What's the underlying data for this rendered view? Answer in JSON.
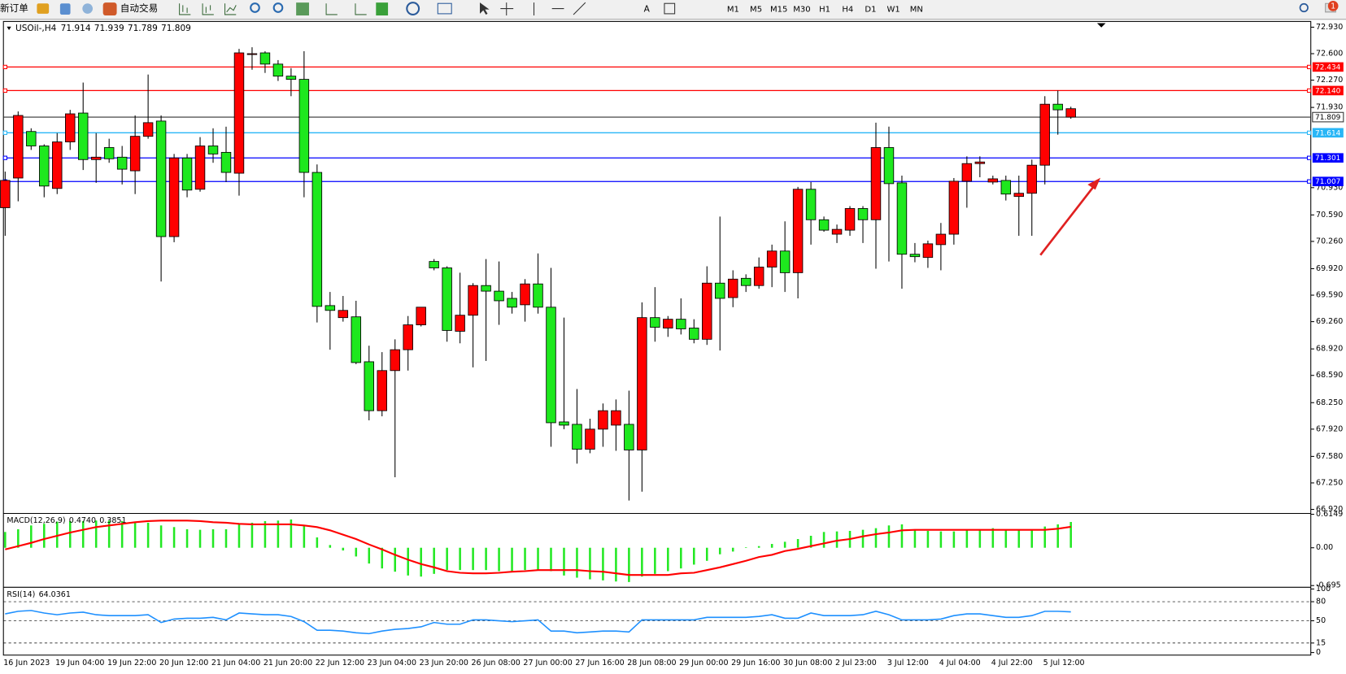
{
  "toolbar": {
    "new_order": "新订单",
    "auto_trading": "自动交易",
    "timeframes": [
      "M1",
      "M5",
      "M15",
      "M30",
      "H1",
      "H4",
      "D1",
      "W1",
      "MN"
    ],
    "notification_count": 1
  },
  "chart_data": [
    {
      "type": "candlestick",
      "symbol": "USOil-,H4",
      "categories": [
        "16 Jun 2023",
        null,
        null,
        null,
        "19 Jun 04:00",
        null,
        null,
        null,
        "19 Jun 22:00",
        null,
        null,
        null,
        "20 Jun 12:00",
        null,
        null,
        null,
        "21 Jun 04:00",
        null,
        null,
        null,
        "21 Jun 20:00",
        null,
        null,
        null,
        "22 Jun 12:00",
        null,
        null,
        null,
        "23 Jun 04:00",
        null,
        null,
        null,
        "23 Jun 20:00",
        null,
        null,
        null,
        "26 Jun 08:00",
        null,
        null,
        null,
        "27 Jun 00:00",
        null,
        null,
        null,
        "27 Jun 16:00",
        null,
        null,
        null,
        "28 Jun 08:00",
        null,
        null,
        null,
        "29 Jun 00:00",
        null,
        null,
        null,
        "29 Jun 16:00",
        null,
        null,
        null,
        "30 Jun 08:00",
        null,
        null,
        null,
        "2 Jul 23:00",
        null,
        null,
        null,
        "3 Jul 12:00",
        null,
        null,
        null,
        "4 Jul 04:00",
        null,
        null,
        null,
        "4 Jul 22:00",
        null,
        null,
        null,
        "5 Jul 12:00",
        null,
        null
      ],
      "open": [
        71.02,
        71.83,
        71.45,
        70.95,
        71.5,
        71.85,
        71.28,
        71.31,
        71.29,
        71.16,
        71.57,
        71.74,
        70.32,
        71.3,
        70.9,
        71.45,
        71.35,
        71.12,
        72.61,
        72.6,
        72.47,
        72.32,
        72.28,
        71.12,
        69.45,
        69.4,
        69.4,
        68.75,
        68.15,
        68.65,
        68.91,
        69.22,
        69.44,
        69.93,
        69.15,
        69.34,
        69.71,
        69.64,
        69.52,
        69.44,
        69.73,
        69.44,
        68.0,
        67.97,
        67.67,
        67.92,
        68.15,
        68.15,
        67.66,
        69.31,
        69.19,
        69.29,
        69.17,
        69.04,
        69.74,
        69.55,
        69.79,
        69.71,
        69.94,
        70.14,
        69.87,
        70.91,
        70.53,
        70.4,
        70.41,
        70.67,
        70.53,
        71.43,
        70.98,
        70.1,
        70.07,
        70.23,
        70.35,
        71.01,
        71.23,
        71.25,
        71.04,
        70.85,
        70.86,
        71.21,
        71.97,
        71.9,
        71.914
      ],
      "high": [
        71.13,
        71.88,
        71.67,
        71.47,
        71.61,
        71.9,
        72.24,
        71.61,
        71.54,
        71.45,
        71.83,
        72.34,
        71.83,
        71.35,
        71.35,
        71.56,
        71.67,
        71.69,
        72.66,
        72.68,
        72.63,
        72.52,
        72.42,
        72.63,
        71.22,
        69.63,
        69.58,
        69.52,
        68.96,
        68.88,
        69.04,
        69.33,
        69.44,
        70.04,
        69.95,
        69.87,
        69.74,
        70.04,
        70.01,
        69.63,
        69.79,
        70.11,
        69.93,
        69.31,
        68.42,
        68.05,
        68.24,
        68.29,
        68.4,
        69.5,
        69.69,
        69.33,
        69.55,
        69.29,
        69.95,
        70.57,
        69.9,
        69.85,
        70.06,
        70.22,
        70.51,
        70.94,
        71.0,
        70.57,
        70.47,
        70.7,
        70.7,
        71.74,
        71.69,
        71.08,
        70.24,
        70.27,
        70.49,
        71.05,
        71.32,
        71.32,
        71.08,
        71.08,
        71.08,
        71.28,
        72.07,
        72.14,
        71.939
      ],
      "low": [
        70.33,
        70.76,
        71.4,
        70.81,
        70.85,
        71.4,
        71.15,
        70.99,
        71.24,
        70.97,
        70.85,
        71.54,
        69.76,
        70.25,
        70.81,
        70.88,
        71.24,
        71.0,
        70.83,
        72.4,
        72.36,
        72.26,
        72.07,
        70.81,
        69.25,
        68.91,
        69.26,
        68.73,
        68.03,
        68.08,
        67.32,
        68.65,
        69.2,
        69.9,
        69.01,
        68.99,
        68.69,
        68.77,
        69.22,
        69.36,
        69.26,
        69.36,
        67.7,
        67.92,
        67.49,
        67.62,
        67.7,
        67.65,
        67.03,
        67.14,
        69.01,
        69.07,
        69.1,
        68.99,
        68.97,
        68.9,
        69.44,
        69.63,
        69.67,
        69.69,
        69.63,
        69.55,
        70.22,
        70.38,
        70.24,
        70.33,
        70.24,
        69.92,
        70.01,
        69.67,
        70.0,
        69.93,
        69.9,
        70.22,
        70.68,
        71.06,
        70.97,
        70.77,
        70.33,
        70.33,
        70.97,
        71.59,
        71.789
      ],
      "close": [
        70.68,
        71.05,
        71.63,
        71.45,
        70.92,
        71.5,
        71.86,
        71.28,
        71.43,
        71.31,
        71.14,
        71.57,
        71.76,
        70.32,
        71.3,
        70.91,
        71.45,
        71.37,
        71.11,
        72.59,
        72.61,
        72.47,
        72.32,
        72.28,
        71.12,
        69.46,
        69.31,
        69.32,
        68.76,
        68.15,
        68.65,
        68.91,
        69.22,
        70.01,
        69.93,
        69.14,
        69.34,
        69.71,
        69.64,
        69.55,
        69.47,
        69.73,
        69.44,
        68.01,
        67.98,
        67.67,
        67.92,
        67.97,
        67.98,
        67.66,
        69.31,
        69.18,
        69.29,
        69.18,
        69.04,
        69.74,
        69.56,
        69.8,
        69.71,
        69.94,
        70.14,
        69.87,
        70.91,
        70.53,
        70.35,
        70.4,
        70.67,
        70.53,
        71.43,
        70.99,
        70.1,
        70.06,
        70.22,
        70.35,
        71.01,
        71.23,
        71.0,
        71.02,
        70.82,
        70.86,
        71.21,
        71.97,
        71.809
      ],
      "up_color": "#1ee81e",
      "down_color": "#ff0000",
      "price_line_color": "#333333",
      "ylim": [
        66.88,
        72.98
      ],
      "yticks": [
        {
          "value": 72.93,
          "label": "72.930"
        },
        {
          "value": 72.6,
          "label": "72.600"
        },
        {
          "value": 72.27,
          "label": "72.270"
        },
        {
          "value": 71.93,
          "label": "71.930"
        },
        {
          "value": 70.93,
          "label": "70.930"
        },
        {
          "value": 70.59,
          "label": "70.590"
        },
        {
          "value": 70.26,
          "label": "70.260"
        },
        {
          "value": 69.92,
          "label": "69.920"
        },
        {
          "value": 69.59,
          "label": "69.590"
        },
        {
          "value": 69.26,
          "label": "69.260"
        },
        {
          "value": 68.92,
          "label": "68.920"
        },
        {
          "value": 68.59,
          "label": "68.590"
        },
        {
          "value": 68.25,
          "label": "68.250"
        },
        {
          "value": 67.92,
          "label": "67.920"
        },
        {
          "value": 67.58,
          "label": "67.580"
        },
        {
          "value": 67.25,
          "label": "67.250"
        },
        {
          "value": 66.92,
          "label": "66.920"
        }
      ],
      "hlines": [
        {
          "value": 72.434,
          "color": "#ff0000"
        },
        {
          "value": 72.14,
          "label": "72.140",
          "color": "#ff0000"
        },
        {
          "value": 71.614,
          "color": "#29b6f6"
        },
        {
          "value": 71.301,
          "color": "#0000ff"
        },
        {
          "value": 71.007,
          "color": "#0000ff"
        }
      ]
    },
    {
      "type": "macd",
      "label": "MACD(12,26,9)",
      "histogram": {
        "color": "#22e822",
        "values": [
          0.29,
          0.34,
          0.41,
          0.44,
          0.48,
          0.49,
          0.49,
          0.5,
          0.5,
          0.49,
          0.48,
          0.46,
          0.41,
          0.38,
          0.34,
          0.33,
          0.34,
          0.34,
          0.44,
          0.46,
          0.49,
          0.5,
          0.52,
          0.41,
          0.19,
          0.05,
          -0.05,
          -0.16,
          -0.29,
          -0.38,
          -0.44,
          -0.51,
          -0.53,
          -0.48,
          -0.41,
          -0.41,
          -0.41,
          -0.41,
          -0.43,
          -0.43,
          -0.41,
          -0.41,
          -0.43,
          -0.51,
          -0.55,
          -0.58,
          -0.6,
          -0.62,
          -0.63,
          -0.53,
          -0.48,
          -0.43,
          -0.38,
          -0.31,
          -0.24,
          -0.12,
          -0.07,
          0.01,
          0.03,
          0.07,
          0.11,
          0.16,
          0.22,
          0.29,
          0.3,
          0.31,
          0.33,
          0.36,
          0.41,
          0.43,
          0.34,
          0.31,
          0.3,
          0.3,
          0.33,
          0.34,
          0.36,
          0.34,
          0.33,
          0.33,
          0.39,
          0.43,
          0.474
        ],
        "value_labels": [
          null,
          null,
          null,
          null,
          null,
          null,
          null,
          null,
          null,
          null,
          null,
          null,
          null,
          null,
          null,
          null,
          null,
          null,
          null,
          null,
          null,
          null,
          null,
          null,
          null,
          null,
          null,
          null,
          null,
          null,
          null,
          null,
          null,
          null,
          null,
          null,
          null,
          null,
          null,
          null,
          null,
          null,
          null,
          null,
          null,
          null,
          null,
          null,
          null,
          null,
          null,
          null,
          null,
          null,
          null,
          null,
          null,
          null,
          null,
          null,
          null,
          null,
          null,
          null,
          null,
          null,
          null,
          null,
          null,
          null,
          null,
          null,
          null,
          null,
          null,
          null,
          null,
          null,
          null,
          null,
          null,
          null,
          "0.4740"
        ]
      },
      "signal": {
        "color": "#ff0000",
        "values": [
          -0.03,
          0.03,
          0.09,
          0.16,
          0.22,
          0.28,
          0.33,
          0.38,
          0.41,
          0.44,
          0.47,
          0.49,
          0.5,
          0.5,
          0.5,
          0.49,
          0.47,
          0.46,
          0.44,
          0.43,
          0.43,
          0.43,
          0.43,
          0.41,
          0.38,
          0.32,
          0.24,
          0.16,
          0.06,
          -0.03,
          -0.13,
          -0.22,
          -0.3,
          -0.36,
          -0.43,
          -0.46,
          -0.47,
          -0.47,
          -0.46,
          -0.44,
          -0.43,
          -0.41,
          -0.41,
          -0.41,
          -0.41,
          -0.43,
          -0.44,
          -0.47,
          -0.5,
          -0.5,
          -0.5,
          -0.5,
          -0.47,
          -0.46,
          -0.41,
          -0.36,
          -0.3,
          -0.24,
          -0.17,
          -0.13,
          -0.06,
          -0.02,
          0.03,
          0.08,
          0.13,
          0.16,
          0.21,
          0.25,
          0.28,
          0.32,
          0.33,
          0.33,
          0.33,
          0.33,
          0.33,
          0.33,
          0.33,
          0.33,
          0.33,
          0.33,
          0.33,
          0.35,
          0.3851
        ]
      },
      "ylim": [
        -0.695,
        0.6149
      ],
      "yticks": [
        0.6149,
        {
          "value": 0,
          "label": "0.00"
        },
        -0.695
      ]
    },
    {
      "type": "line",
      "label": "RSI(14)",
      "color": "#1e90ff",
      "grid": true,
      "values": [
        60.8,
        64.9,
        66.2,
        62.2,
        59.5,
        62.2,
        63.5,
        59.5,
        58.1,
        58.1,
        58.1,
        59.5,
        47.3,
        52.7,
        54,
        54,
        55.4,
        51.4,
        62.2,
        60.8,
        59.5,
        59.5,
        56.8,
        48.6,
        35.1,
        35.1,
        33.8,
        31.1,
        29.7,
        33.8,
        36.5,
        37.8,
        40.5,
        47.3,
        44.6,
        44.6,
        51.4,
        51.4,
        50,
        48.6,
        50,
        51.4,
        33.8,
        33.8,
        31.1,
        32.4,
        33.8,
        33.8,
        32.4,
        51.4,
        51.4,
        51.4,
        51.4,
        51.4,
        55.4,
        55.4,
        55.4,
        55.4,
        56.8,
        59.5,
        54,
        54,
        62.2,
        58.1,
        58.1,
        58.1,
        59.5,
        64.9,
        59.5,
        51.4,
        51.4,
        51.4,
        52.7,
        58.1,
        60.8,
        60.8,
        58.1,
        55.4,
        55.4,
        58.1,
        64.9,
        64.9,
        64.0361
      ],
      "ylim": [
        0,
        100
      ],
      "yticks": [
        100,
        80,
        50,
        15,
        0
      ]
    }
  ]
}
